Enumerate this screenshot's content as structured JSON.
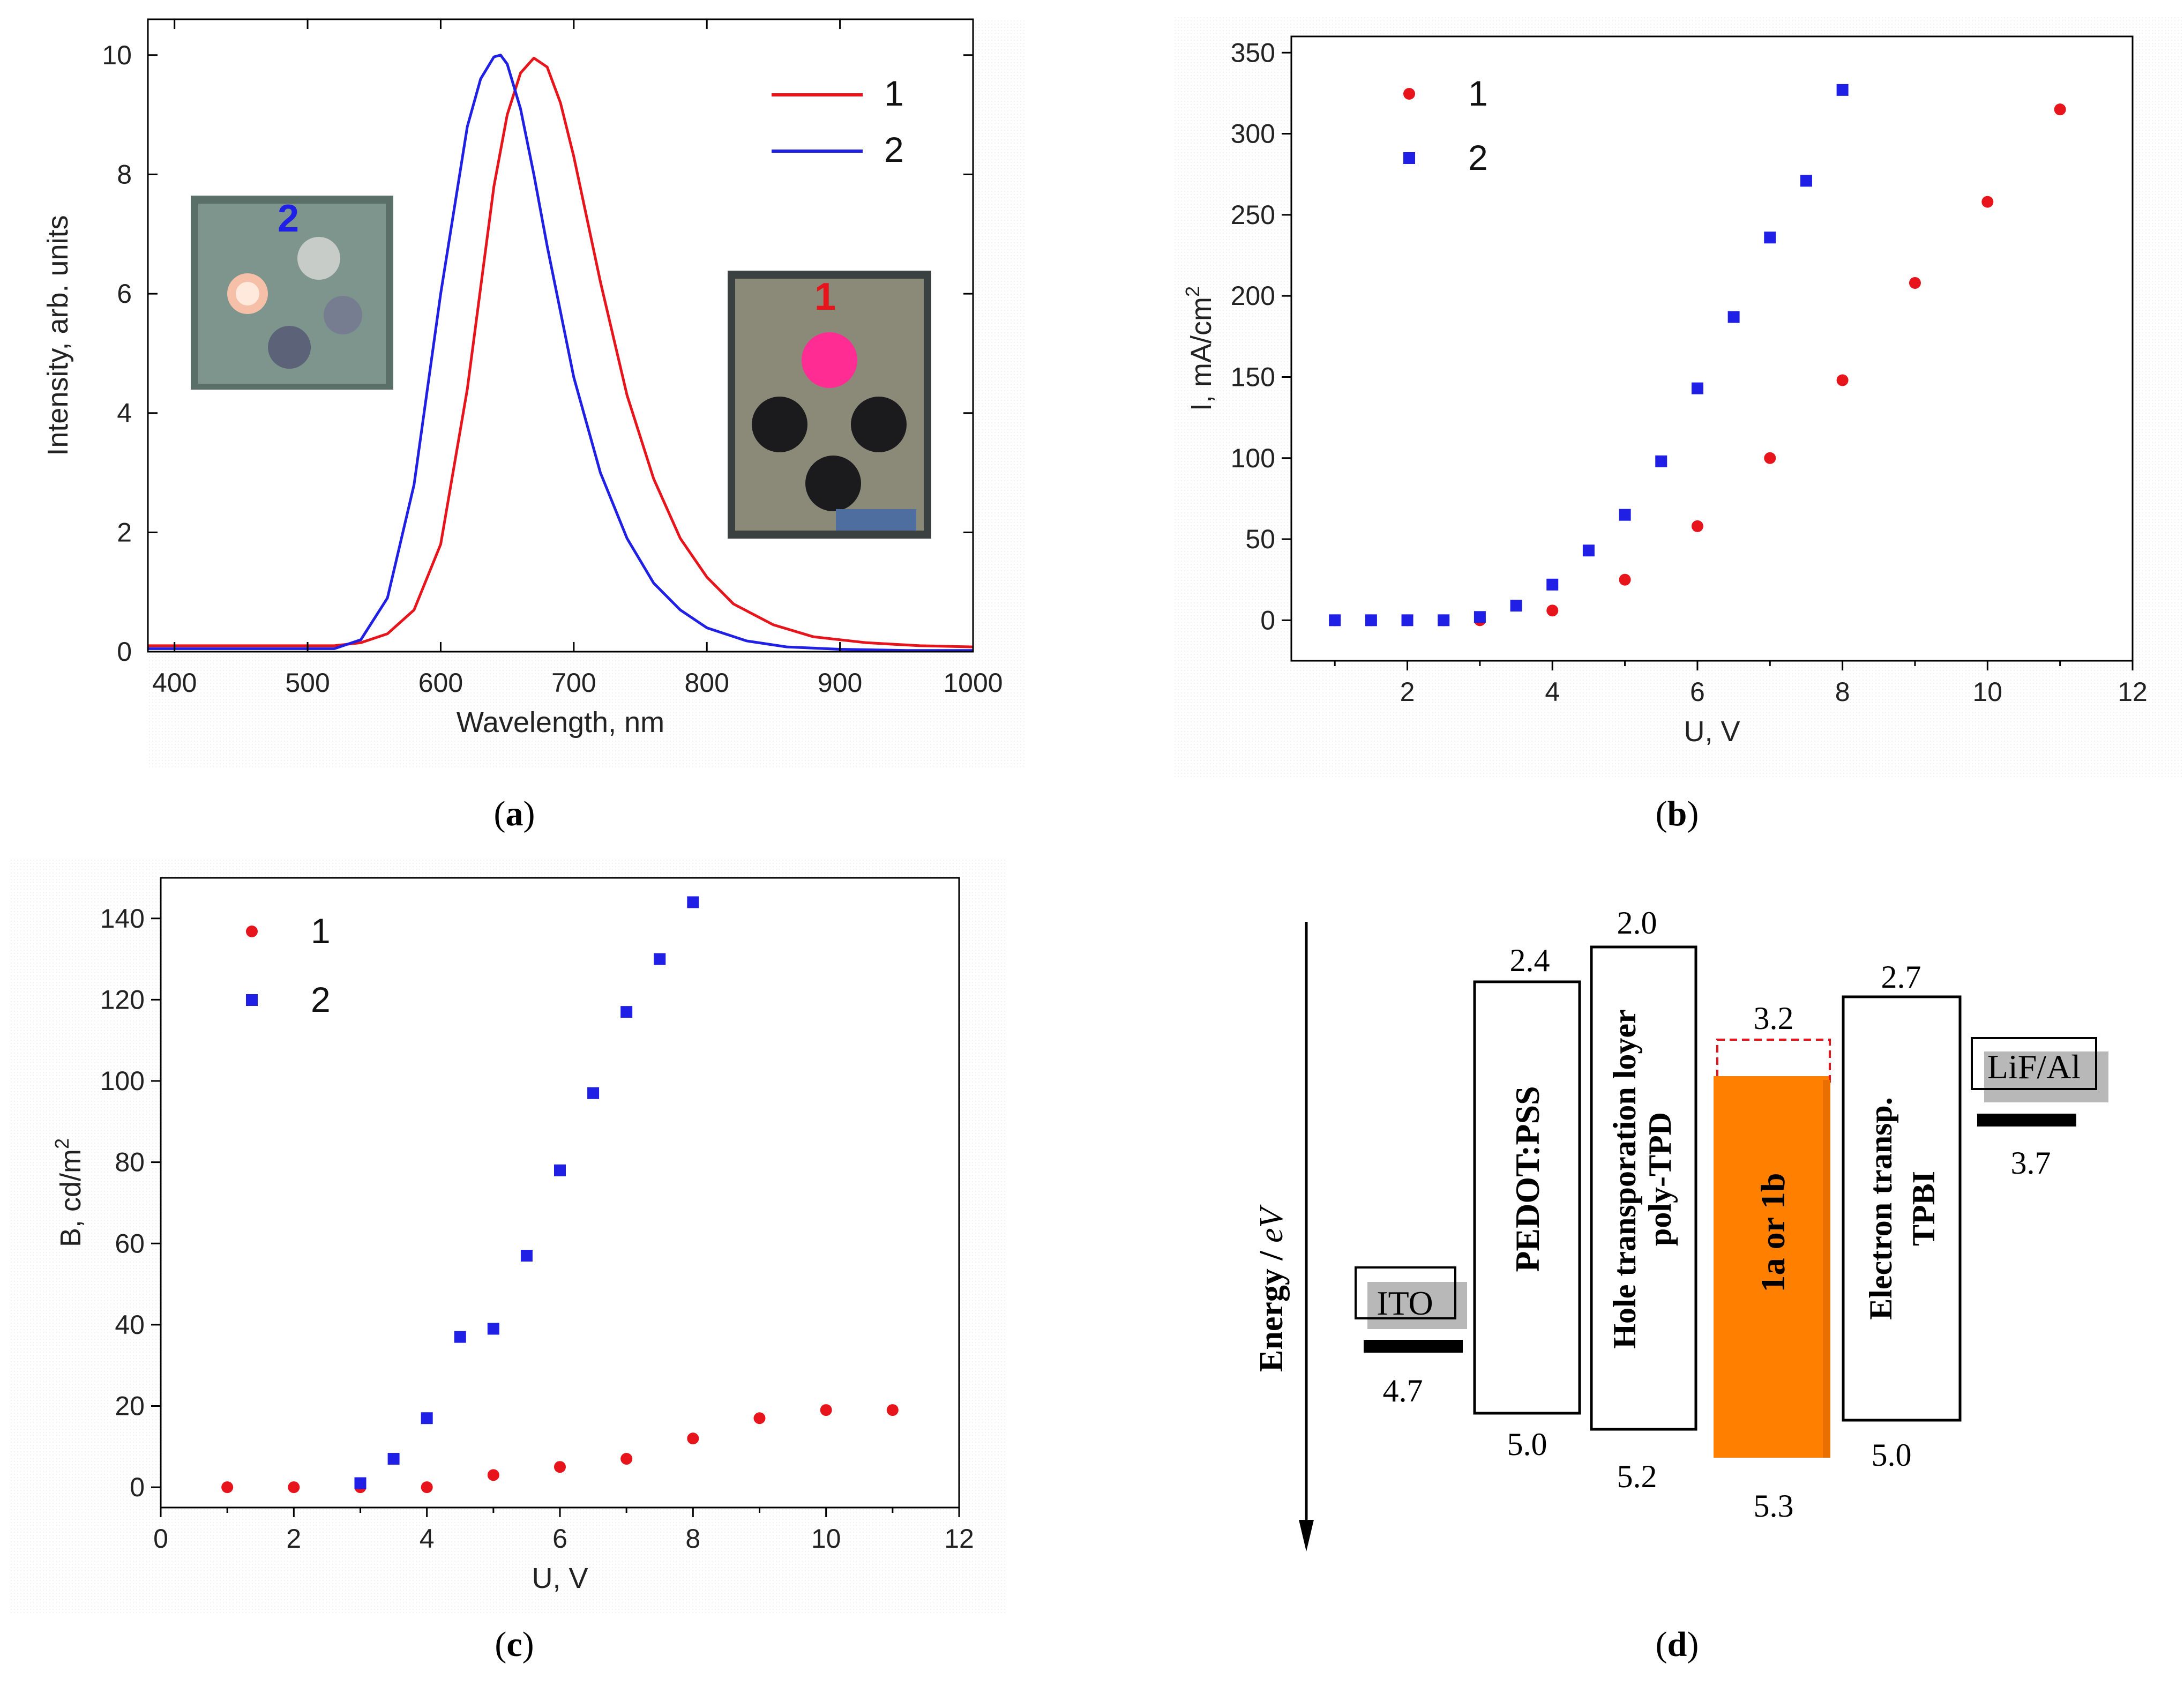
{
  "captions": {
    "a": "a",
    "b": "b",
    "c": "c",
    "d": "d"
  },
  "colors": {
    "series1": "#e8141b",
    "series2": "#1f1fe6",
    "orange": "#ff7f00",
    "gray": "#b8b8b8"
  },
  "chart_data": [
    {
      "id": "a",
      "type": "line",
      "title": "",
      "xlabel": "Wavelength, nm",
      "ylabel": "Intensity, arb. units",
      "xlim": [
        380,
        1000
      ],
      "ylim": [
        0,
        10.6
      ],
      "xticks": [
        400,
        500,
        600,
        700,
        800,
        900,
        1000
      ],
      "yticks": [
        0,
        2,
        4,
        6,
        8,
        10
      ],
      "legend": [
        {
          "name": "1",
          "color": "#e8141b"
        },
        {
          "name": "2",
          "color": "#1f1fe6"
        }
      ],
      "legend_position": "top-right",
      "series": [
        {
          "name": "1",
          "x": [
            380,
            450,
            520,
            540,
            560,
            580,
            600,
            620,
            640,
            650,
            660,
            670,
            680,
            690,
            700,
            720,
            740,
            760,
            780,
            800,
            820,
            850,
            880,
            920,
            960,
            1000
          ],
          "y": [
            0.1,
            0.1,
            0.1,
            0.15,
            0.3,
            0.7,
            1.8,
            4.4,
            7.8,
            9.0,
            9.7,
            9.95,
            9.8,
            9.2,
            8.3,
            6.2,
            4.3,
            2.9,
            1.9,
            1.25,
            0.8,
            0.45,
            0.25,
            0.15,
            0.1,
            0.08
          ]
        },
        {
          "name": "2",
          "x": [
            380,
            450,
            520,
            540,
            560,
            580,
            600,
            620,
            630,
            640,
            645,
            650,
            660,
            670,
            680,
            700,
            720,
            740,
            760,
            780,
            800,
            830,
            860,
            900,
            950,
            1000
          ],
          "y": [
            0.05,
            0.05,
            0.05,
            0.2,
            0.9,
            2.8,
            6.0,
            8.8,
            9.6,
            9.97,
            10.0,
            9.85,
            9.1,
            8.0,
            6.8,
            4.6,
            3.0,
            1.9,
            1.15,
            0.7,
            0.4,
            0.18,
            0.08,
            0.04,
            0.02,
            0.02
          ]
        }
      ],
      "insets": [
        {
          "label": "2",
          "label_color": "#1f1fe6",
          "description": "device photo 2"
        },
        {
          "label": "1",
          "label_color": "#e8141b",
          "description": "device photo 1"
        }
      ]
    },
    {
      "id": "b",
      "type": "scatter",
      "title": "",
      "xlabel": "U, V",
      "ylabel": "I, mA/cm",
      "ylabel_sup": "2",
      "xlim": [
        0.4,
        12
      ],
      "ylim": [
        -25,
        360
      ],
      "xticks": [
        2,
        4,
        6,
        8,
        10,
        12
      ],
      "yticks": [
        0,
        50,
        100,
        150,
        200,
        250,
        300,
        350
      ],
      "legend": [
        {
          "name": "1",
          "color": "#e8141b",
          "marker": "circle"
        },
        {
          "name": "2",
          "color": "#1f1fe6",
          "marker": "square"
        }
      ],
      "legend_position": "top-left",
      "series": [
        {
          "name": "1",
          "marker": "circle",
          "x": [
            1,
            1.5,
            2,
            2.5,
            3,
            4,
            5,
            6,
            7,
            8,
            9,
            10,
            11
          ],
          "y": [
            0,
            0,
            0,
            0,
            0,
            6,
            25,
            58,
            100,
            148,
            208,
            258,
            315
          ]
        },
        {
          "name": "2",
          "marker": "square",
          "x": [
            1,
            1.5,
            2,
            2.5,
            3,
            3.5,
            4,
            4.5,
            5,
            5.5,
            6,
            6.5,
            7,
            7.5,
            8
          ],
          "y": [
            0,
            0,
            0,
            0,
            2,
            9,
            22,
            43,
            65,
            98,
            143,
            187,
            236,
            271,
            327
          ]
        }
      ]
    },
    {
      "id": "c",
      "type": "scatter",
      "title": "",
      "xlabel": "U, V",
      "ylabel": "B, cd/m",
      "ylabel_sup": "2",
      "xlim": [
        0,
        12
      ],
      "ylim": [
        -5,
        150
      ],
      "xticks": [
        0,
        2,
        4,
        6,
        8,
        10,
        12
      ],
      "yticks": [
        0,
        20,
        40,
        60,
        80,
        100,
        120,
        140
      ],
      "legend": [
        {
          "name": "1",
          "color": "#e8141b",
          "marker": "circle"
        },
        {
          "name": "2",
          "color": "#1f1fe6",
          "marker": "square"
        }
      ],
      "legend_position": "top-left",
      "series": [
        {
          "name": "1",
          "marker": "circle",
          "x": [
            1,
            2,
            3,
            4,
            5,
            6,
            7,
            8,
            9,
            10,
            11
          ],
          "y": [
            0,
            0,
            0,
            0,
            3,
            5,
            7,
            12,
            17,
            19,
            19
          ]
        },
        {
          "name": "2",
          "marker": "square",
          "x": [
            3,
            3.5,
            4,
            4.5,
            5,
            5.5,
            6,
            6.5,
            7,
            7.5,
            8
          ],
          "y": [
            1,
            7,
            17,
            37,
            39,
            57,
            78,
            97,
            117,
            130,
            144
          ]
        }
      ]
    }
  ],
  "diagram": {
    "axis_label": "Energy / ",
    "axis_unit": "eV",
    "layers": [
      {
        "name": "ITO",
        "bottom": "4.7"
      },
      {
        "name": "PEDOT:PSS",
        "top": "2.4",
        "bottom": "5.0"
      },
      {
        "name_line1": "Hole transporation loyer",
        "name_line2": "poly-TPD",
        "top": "2.0",
        "bottom": "5.2"
      },
      {
        "name": "1a or 1b",
        "top": "3.2",
        "bottom": "5.3"
      },
      {
        "name_line1": "Electron transp.",
        "name_line2": "TPBI",
        "top": "2.7",
        "bottom": "5.0"
      },
      {
        "name": "LiF/Al",
        "bottom": "3.7"
      }
    ]
  }
}
